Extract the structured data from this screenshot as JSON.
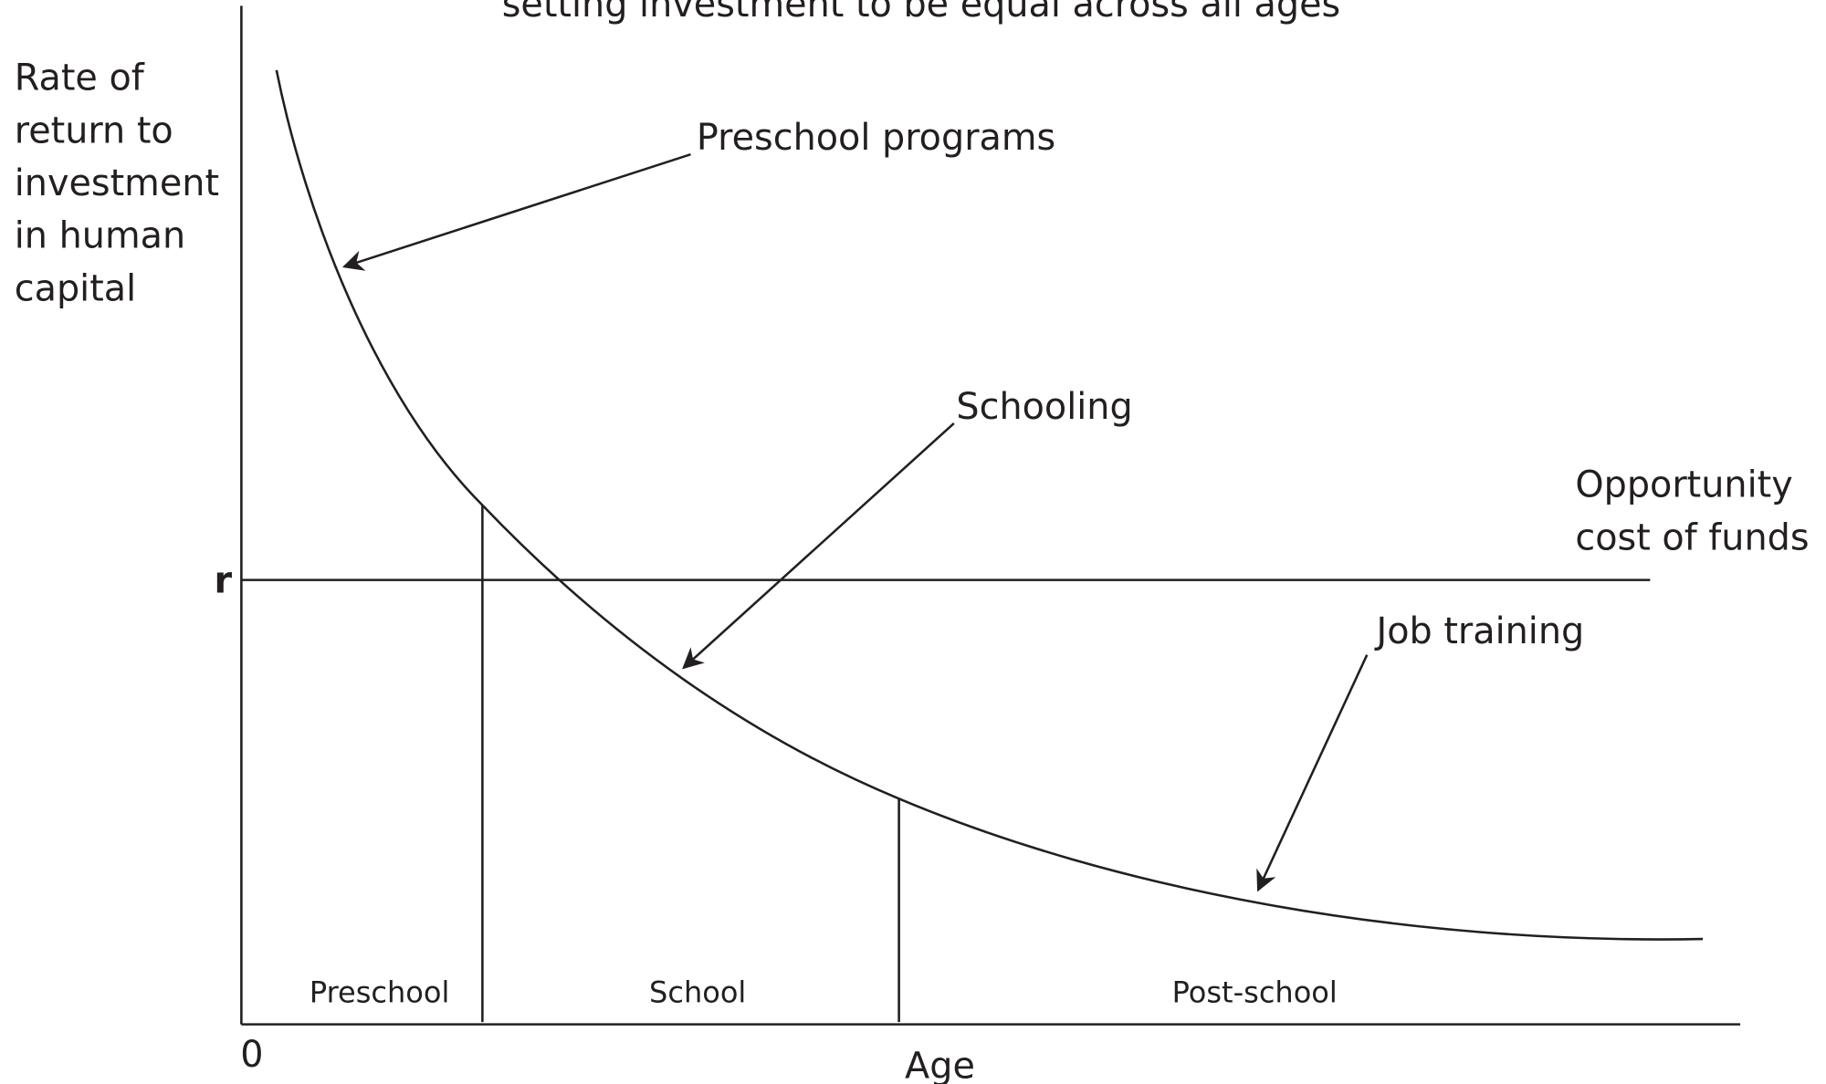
{
  "title": "setting investment to be equal across all ages",
  "y_axis_label": [
    "Rate of",
    "return to",
    "investment",
    "in human",
    "capital"
  ],
  "x_axis_label": "Age",
  "origin_label": "0",
  "r_label": "r",
  "opportunity_cost_label": [
    "Opportunity",
    "cost of funds"
  ],
  "annotations": [
    "Preschool programs",
    "Schooling",
    "Job training"
  ],
  "regions": [
    "Preschool",
    "School",
    "Post-school"
  ]
}
